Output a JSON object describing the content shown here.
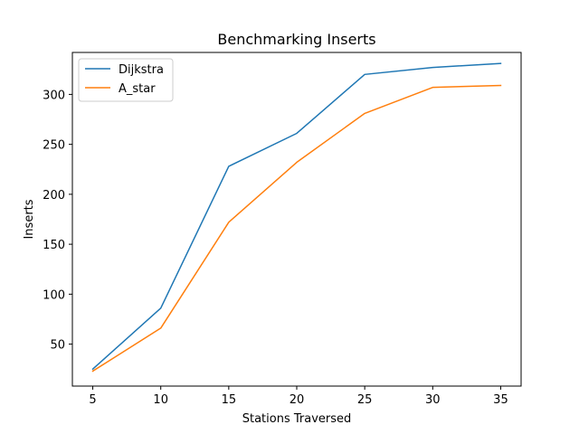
{
  "chart_data": {
    "type": "line",
    "title": "Benchmarking Inserts",
    "xlabel": "Stations Traversed",
    "ylabel": "Inserts",
    "x": [
      5,
      10,
      15,
      20,
      25,
      30,
      35
    ],
    "xticks": [
      5,
      10,
      15,
      20,
      25,
      30,
      35
    ],
    "yticks": [
      50,
      100,
      150,
      200,
      250,
      300
    ],
    "xlim": [
      3.5,
      36.5
    ],
    "ylim": [
      8,
      342
    ],
    "grid": false,
    "legend_position": "upper-left",
    "series": [
      {
        "name": "Dijkstra",
        "color": "#1f77b4",
        "values": [
          25,
          86,
          228,
          261,
          320,
          327,
          331
        ]
      },
      {
        "name": "A_star",
        "color": "#ff7f0e",
        "values": [
          23,
          66,
          172,
          232,
          281,
          307,
          309
        ]
      }
    ]
  }
}
